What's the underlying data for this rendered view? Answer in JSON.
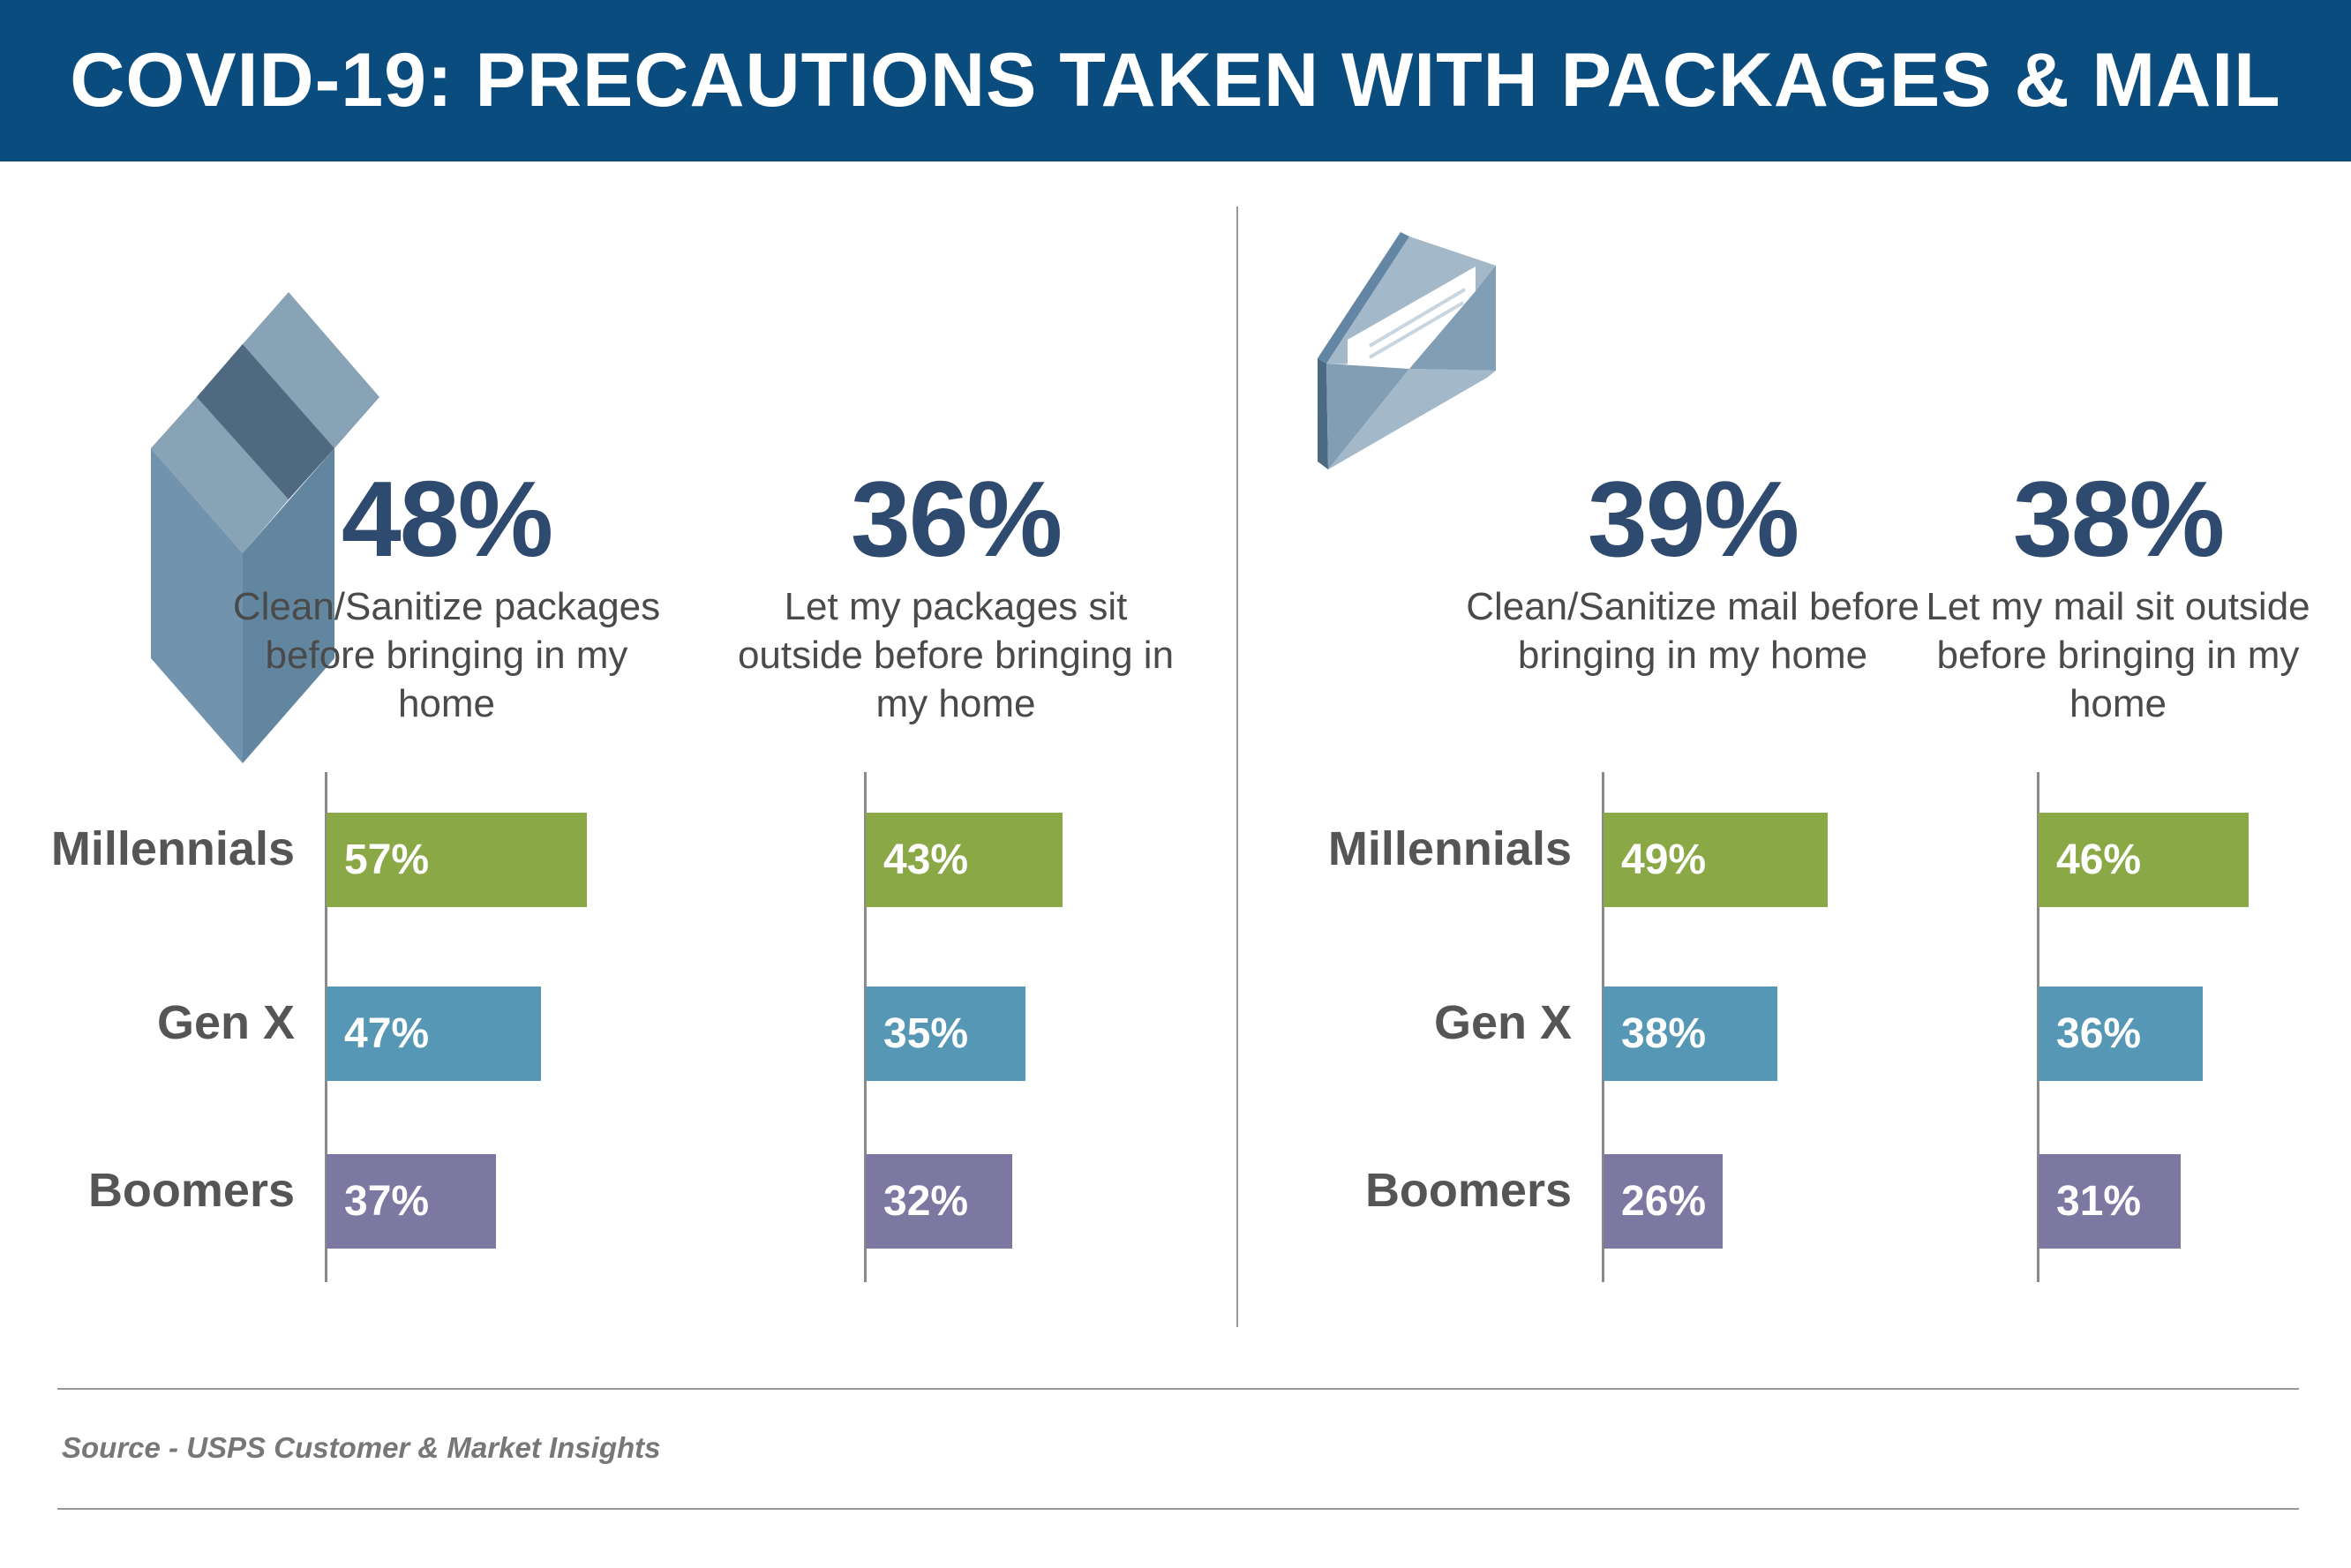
{
  "title": "COVID-19: PRECAUTIONS TAKEN WITH PACKAGES & MAIL",
  "source": "Source - USPS Customer & Market Insights",
  "icons": [
    "package-box-icon",
    "open-envelope-icon"
  ],
  "colors": {
    "header": "#0b4c7f",
    "headline": "#2e4a6e",
    "Millennials": "#8aa845",
    "Gen X": "#5597b4",
    "Boomers": "#7c78a2"
  },
  "chart_data": [
    {
      "type": "bar",
      "orientation": "horizontal",
      "headline": "48%",
      "title": "Clean/Sanitize packages before bringing in my home",
      "categories": [
        "Millennials",
        "Gen X",
        "Boomers"
      ],
      "values": [
        57,
        47,
        37
      ],
      "labels": [
        "57%",
        "47%",
        "37%"
      ]
    },
    {
      "type": "bar",
      "orientation": "horizontal",
      "headline": "36%",
      "title": "Let my packages sit outside before bringing in my home",
      "categories": [
        "Millennials",
        "Gen X",
        "Boomers"
      ],
      "values": [
        43,
        35,
        32
      ],
      "labels": [
        "43%",
        "35%",
        "32%"
      ]
    },
    {
      "type": "bar",
      "orientation": "horizontal",
      "headline": "39%",
      "title": "Clean/Sanitize mail before bringing in my home",
      "categories": [
        "Millennials",
        "Gen X",
        "Boomers"
      ],
      "values": [
        49,
        38,
        26
      ],
      "labels": [
        "49%",
        "38%",
        "26%"
      ]
    },
    {
      "type": "bar",
      "orientation": "horizontal",
      "headline": "38%",
      "title": "Let my mail sit outside before bringing in my home",
      "categories": [
        "Millennials",
        "Gen X",
        "Boomers"
      ],
      "values": [
        46,
        36,
        31
      ],
      "labels": [
        "46%",
        "36%",
        "31%"
      ]
    }
  ]
}
